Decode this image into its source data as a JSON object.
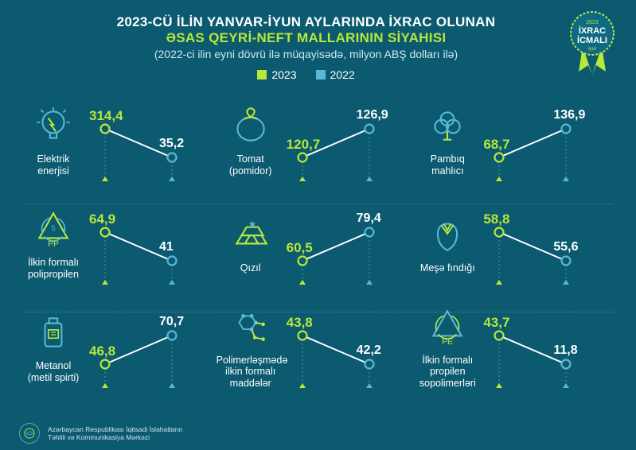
{
  "header": {
    "title_line1": "2023-CÜ İLİN YANVAR-İYUN AYLARINDA İXRAC OLUNAN",
    "title_line2": "ƏSAS QEYRİ-NEFT MALLARININ SİYAHISI",
    "subtitle": "(2022-ci ilin eyni dövrü ilə müqayisədə, milyon ABŞ dolları ilə)",
    "accent_color": "#b8e83a",
    "text_color": "#ffffff"
  },
  "legend": {
    "y2023": {
      "label": "2023",
      "color": "#b8e83a"
    },
    "y2022": {
      "label": "2022",
      "color": "#58b9d6"
    }
  },
  "colors": {
    "background": "#0b5a70",
    "green": "#b8e83a",
    "cyan": "#58b9d6",
    "white": "#ffffff",
    "grid": "#3e8294"
  },
  "badge": {
    "year": "2023",
    "line1": "İXRAC",
    "line2": "İCMALI",
    "month": "iyul",
    "ring_color": "#b8e83a",
    "fill_color": "#0e6a82",
    "ribbon_color": "#b8e83a"
  },
  "items": [
    {
      "label": "Elektrik enerjisi",
      "icon": "bulb",
      "v2023": "314,4",
      "v2022": "35,2",
      "trend": "down"
    },
    {
      "label": "Tomat (pomidor)",
      "icon": "tomato",
      "v2023": "120,7",
      "v2022": "126,9",
      "trend": "up"
    },
    {
      "label": "Pambıq mahlıcı",
      "icon": "cotton",
      "v2023": "68,7",
      "v2022": "136,9",
      "trend": "up"
    },
    {
      "label": "İlkin formalı polipropilen",
      "icon": "pp",
      "v2023": "64,9",
      "v2022": "41",
      "trend": "down"
    },
    {
      "label": "Qızıl",
      "icon": "gold",
      "v2023": "60,5",
      "v2022": "79,4",
      "trend": "up"
    },
    {
      "label": "Meşə fındığı",
      "icon": "hazelnut",
      "v2023": "58,8",
      "v2022": "55,6",
      "trend": "down"
    },
    {
      "label": "Metanol (metil spirti)",
      "icon": "methanol",
      "v2023": "46,8",
      "v2022": "70,7",
      "trend": "up"
    },
    {
      "label": "Polimerləşmədə ilkin formalı maddələr",
      "icon": "polymer",
      "v2023": "43,8",
      "v2022": "42,2",
      "trend": "down"
    },
    {
      "label": "İlkin formalı propilen sopolimerləri",
      "icon": "pe",
      "v2023": "43,7",
      "v2022": "11,8",
      "trend": "down"
    }
  ],
  "chart_style": {
    "point_radius": 5.5,
    "line_width": 2,
    "dash_color": "#3e8294",
    "val2023_fontsize": 17,
    "val2022_fontsize": 16,
    "arrow_size": 5
  },
  "footer": {
    "org_line1": "Azərbaycan Respublikası İqtisadi İslahatların",
    "org_line2": "Təhlili və Kommunikasiya Mərkəzi"
  }
}
